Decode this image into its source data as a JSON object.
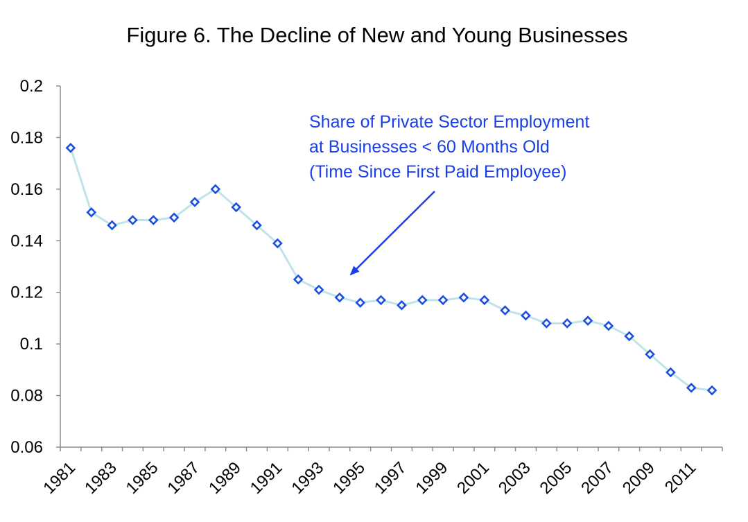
{
  "chart_data": {
    "type": "line",
    "title": "Figure 6. The Decline of New and Young Businesses",
    "xlabel": "",
    "ylabel": "",
    "x": [
      1981,
      1982,
      1983,
      1984,
      1985,
      1986,
      1987,
      1988,
      1989,
      1990,
      1991,
      1992,
      1993,
      1994,
      1995,
      1996,
      1997,
      1998,
      1999,
      2000,
      2001,
      2002,
      2003,
      2004,
      2005,
      2006,
      2007,
      2008,
      2009,
      2010,
      2011,
      2012
    ],
    "series": [
      {
        "name": "Share of Private Sector Employment at Businesses < 60 Months Old",
        "values": [
          0.176,
          0.151,
          0.146,
          0.148,
          0.148,
          0.149,
          0.155,
          0.16,
          0.153,
          0.146,
          0.139,
          0.125,
          0.121,
          0.118,
          0.116,
          0.117,
          0.115,
          0.117,
          0.117,
          0.118,
          0.117,
          0.113,
          0.111,
          0.108,
          0.108,
          0.109,
          0.107,
          0.103,
          0.096,
          0.089,
          0.083,
          0.082
        ]
      }
    ],
    "xticklabels": [
      "1981",
      "1983",
      "1985",
      "1987",
      "1989",
      "1991",
      "1993",
      "1995",
      "1997",
      "1999",
      "2001",
      "2003",
      "2005",
      "2007",
      "2009",
      "2011"
    ],
    "yticks": [
      "0.06",
      "0.08",
      "0.1",
      "0.12",
      "0.14",
      "0.16",
      "0.18",
      "0.2"
    ],
    "ylim": [
      0.06,
      0.2
    ],
    "grid": false,
    "annotation": {
      "lines": [
        "Share of Private Sector Employment",
        "at Businesses < 60 Months Old",
        "(Time Since First Paid Employee)"
      ],
      "points_to_year": 1994
    },
    "colors": {
      "marker": "#1a4fe0",
      "line": "#bfe3e8",
      "annotation": "#1a3ee8",
      "axis": "#8c8c8c"
    }
  }
}
